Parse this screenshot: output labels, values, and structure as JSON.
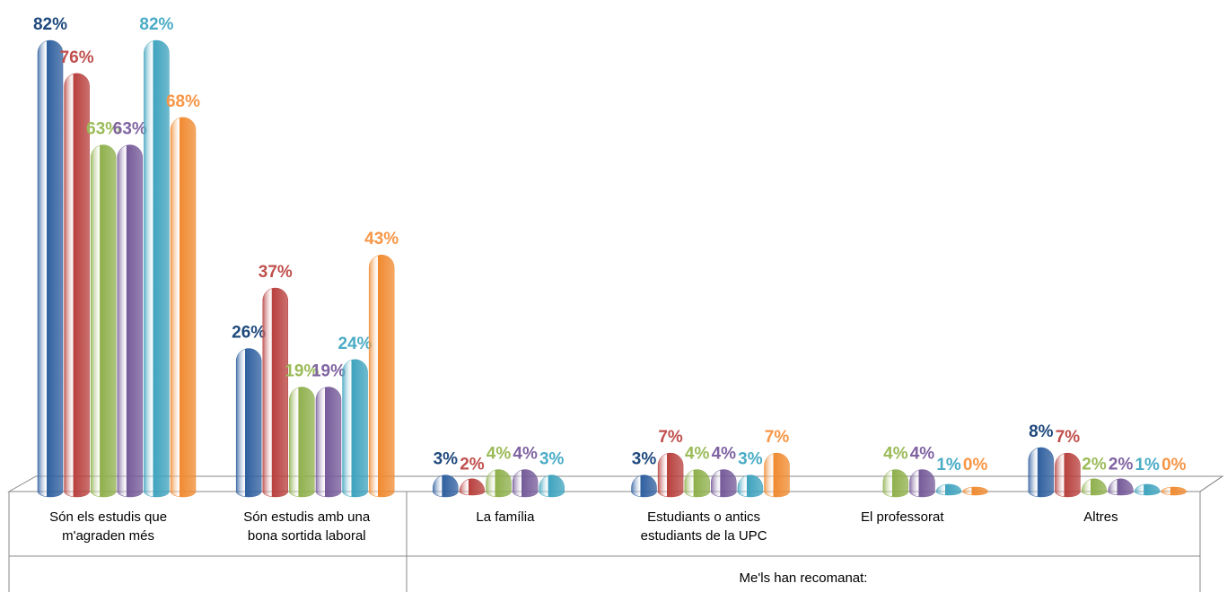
{
  "chart_data": {
    "type": "bar",
    "categories": [
      "Són els estudis que m'agraden més",
      "Són estudis amb una bona sortida laboral",
      "La família",
      "Estudiants o antics estudiants de la UPC",
      "El professorat",
      "Altres"
    ],
    "group_label": "Me'ls han recomanat:",
    "series": [
      {
        "color": "#2f5f9f",
        "label_color": "#1f497d",
        "values": [
          82,
          26,
          3,
          3,
          null,
          8
        ],
        "value_labels": [
          "82%",
          "26%",
          "3%",
          "3%",
          null,
          "8%"
        ]
      },
      {
        "color": "#b8403d",
        "label_color": "#c0504d",
        "values": [
          76,
          37,
          2,
          7,
          null,
          7
        ],
        "value_labels": [
          "76%",
          "37%",
          "2%",
          "7%",
          null,
          "7%"
        ]
      },
      {
        "color": "#8fb04c",
        "label_color": "#9bbb59",
        "values": [
          63,
          19,
          4,
          4,
          4,
          2
        ],
        "value_labels": [
          "63%",
          "19%",
          "4%",
          "4%",
          "4%",
          "2%"
        ]
      },
      {
        "color": "#755a99",
        "label_color": "#8064a2",
        "values": [
          63,
          19,
          4,
          4,
          4,
          2
        ],
        "value_labels": [
          "63%",
          "19%",
          "4%",
          "4%",
          "4%",
          "2%"
        ]
      },
      {
        "color": "#3ea3be",
        "label_color": "#4bacc6",
        "values": [
          82,
          24,
          3,
          3,
          1,
          1
        ],
        "value_labels": [
          "82%",
          "24%",
          "3%",
          "3%",
          "1%",
          "1%"
        ]
      },
      {
        "color": "#f08a30",
        "label_color": "#f79646",
        "values": [
          68,
          43,
          null,
          7,
          0,
          0
        ],
        "value_labels": [
          "68%",
          "43%",
          null,
          "7%",
          "0%",
          "0%"
        ]
      }
    ]
  }
}
